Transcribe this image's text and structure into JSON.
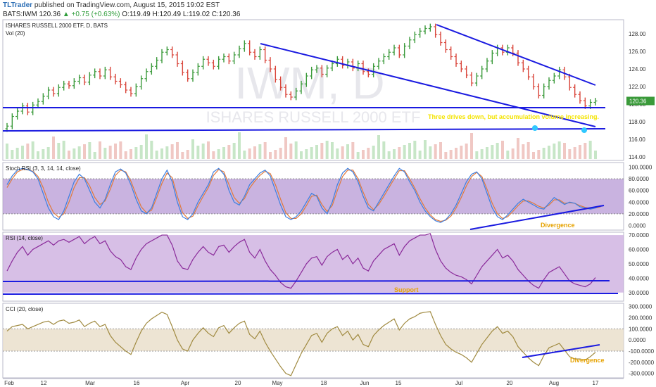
{
  "header": {
    "user": "TLTrader",
    "published": "published on TradingView.com, August 15, 2015 19:02 EST",
    "symbol": "BATS:IWM",
    "last": "120.36",
    "change": "+0.75 (+0.63%)",
    "open": "O:119.49",
    "high": "H:120.49",
    "low": "L:119.02",
    "close": "C:120.36"
  },
  "panes": {
    "price": {
      "title": "ISHARES RUSSELL 2000 ETF, D, BATS",
      "vol_label": "Vol (20)"
    },
    "stoch": {
      "title": "Stoch RSI (3, 3, 14, 14, close)"
    },
    "rsi": {
      "title": "RSI (14, close)"
    },
    "cci": {
      "title": "CCI (20, close)"
    }
  },
  "watermark": {
    "big": "IWM, D",
    "small": "ISHARES RUSSELL 2000 ETF"
  },
  "annotations": {
    "three_drives": "Three drives down, but accumulation volume increasing.",
    "stoch_div": "Divergence",
    "rsi_support": "Support",
    "cci_div": "Divergence"
  },
  "current_price_tag": "120.36",
  "colors": {
    "up": "#3b9a3b",
    "down": "#d9453a",
    "trendline": "#1a1ae0",
    "stoch_k": "#3d7fe0",
    "stoch_d": "#e07a3d",
    "rsi": "#8a2a9a",
    "cci": "#a08a40"
  },
  "chart_data": [
    {
      "type": "candlestick",
      "title": "ISHARES RUSSELL 2000 ETF, D, BATS",
      "x_ticks": [
        "Feb",
        "12",
        "Mar",
        "16",
        "Apr",
        "20",
        "May",
        "18",
        "Jun",
        "15",
        "Jul",
        "20",
        "Aug",
        "17"
      ],
      "y_ticks": [
        114.0,
        116.0,
        118.0,
        120.0,
        122.0,
        124.0,
        126.0,
        128.0
      ],
      "ylim": [
        113.6,
        129.6
      ],
      "close": [
        117.5,
        118.6,
        119.2,
        119.8,
        119.1,
        119.9,
        120.3,
        120.9,
        121.6,
        121.2,
        121.9,
        122.3,
        122.1,
        122.6,
        123.0,
        122.5,
        123.3,
        123.7,
        123.2,
        123.9,
        123.1,
        122.6,
        122.2,
        121.6,
        121.2,
        122.0,
        122.9,
        123.7,
        124.3,
        125.0,
        125.9,
        126.2,
        125.6,
        124.6,
        123.6,
        122.9,
        123.6,
        124.3,
        125.1,
        124.7,
        124.3,
        125.1,
        125.4,
        124.9,
        125.6,
        126.3,
        126.9,
        125.9,
        125.4,
        126.2,
        125.0,
        124.0,
        122.8,
        121.9,
        121.1,
        120.8,
        121.5,
        122.3,
        123.2,
        123.9,
        124.1,
        123.4,
        124.1,
        124.6,
        125.1,
        124.4,
        124.8,
        124.1,
        124.6,
        123.7,
        123.4,
        124.3,
        124.9,
        125.4,
        125.9,
        126.4,
        125.6,
        126.6,
        127.3,
        127.9,
        128.3,
        128.6,
        128.8,
        127.9,
        127.0,
        126.2,
        125.4,
        124.6,
        124.0,
        123.3,
        122.4,
        123.2,
        124.0,
        124.9,
        125.8,
        126.4,
        125.9,
        126.4,
        125.8,
        124.7,
        124.0,
        123.1,
        122.0,
        121.0,
        122.0,
        122.7,
        123.2,
        123.9,
        123.1,
        121.9,
        121.1,
        120.4,
        119.8,
        120.2,
        120.36
      ],
      "volume_desc": "volume bars at bottom of price pane"
    },
    {
      "type": "line",
      "title": "Stoch RSI (3, 3, 14, 14, close)",
      "y_ticks": [
        0.0,
        20.0,
        40.0,
        60.0,
        80.0,
        100.0
      ],
      "ylim": [
        -8,
        108
      ],
      "band": [
        20,
        80
      ],
      "series": [
        {
          "name": "%K",
          "values": [
            70,
            85,
            95,
            98,
            96,
            92,
            80,
            55,
            30,
            15,
            10,
            25,
            50,
            75,
            88,
            80,
            60,
            40,
            30,
            45,
            70,
            92,
            97,
            90,
            70,
            45,
            25,
            20,
            30,
            55,
            80,
            95,
            75,
            40,
            15,
            10,
            20,
            40,
            55,
            70,
            92,
            98,
            88,
            60,
            40,
            35,
            50,
            70,
            80,
            90,
            95,
            85,
            60,
            35,
            15,
            10,
            15,
            25,
            40,
            55,
            50,
            30,
            20,
            40,
            70,
            90,
            98,
            92,
            75,
            50,
            30,
            25,
            40,
            55,
            70,
            85,
            98,
            92,
            75,
            60,
            40,
            25,
            15,
            8,
            5,
            10,
            20,
            35,
            55,
            75,
            88,
            92,
            80,
            55,
            30,
            15,
            10,
            18,
            28,
            38,
            45,
            40,
            35,
            30,
            28,
            38,
            48,
            42,
            36,
            40,
            38,
            32,
            30,
            28,
            30,
            34
          ]
        },
        {
          "name": "%D",
          "values": [
            65,
            80,
            92,
            96,
            96,
            93,
            84,
            65,
            40,
            22,
            14,
            20,
            40,
            65,
            82,
            82,
            68,
            48,
            36,
            42,
            62,
            86,
            95,
            92,
            76,
            53,
            32,
            22,
            26,
            48,
            72,
            90,
            82,
            50,
            22,
            12,
            16,
            34,
            50,
            65,
            86,
            96,
            92,
            70,
            48,
            38,
            46,
            64,
            76,
            86,
            93,
            89,
            70,
            45,
            22,
            12,
            12,
            20,
            34,
            50,
            52,
            36,
            24,
            34,
            60,
            84,
            95,
            95,
            80,
            57,
            36,
            27,
            36,
            50,
            65,
            80,
            94,
            94,
            80,
            64,
            46,
            30,
            18,
            10,
            7,
            9,
            16,
            30,
            48,
            68,
            84,
            91,
            84,
            62,
            38,
            20,
            12,
            15,
            24,
            34,
            42,
            42,
            38,
            33,
            30,
            35,
            44,
            44,
            38,
            39,
            38,
            34,
            31,
            29,
            30,
            32
          ]
        }
      ]
    },
    {
      "type": "line",
      "title": "RSI (14, close)",
      "y_ticks": [
        30.0,
        40.0,
        50.0,
        60.0,
        70.0
      ],
      "ylim": [
        24,
        72
      ],
      "series": [
        {
          "name": "RSI",
          "values": [
            45,
            52,
            58,
            62,
            56,
            60,
            62,
            64,
            66,
            63,
            66,
            67,
            65,
            67,
            69,
            64,
            67,
            69,
            64,
            66,
            59,
            55,
            53,
            48,
            46,
            54,
            60,
            64,
            66,
            68,
            70,
            70,
            63,
            52,
            47,
            46,
            53,
            58,
            62,
            58,
            56,
            62,
            63,
            58,
            62,
            65,
            67,
            58,
            54,
            60,
            52,
            46,
            42,
            37,
            34,
            33,
            38,
            44,
            50,
            54,
            55,
            49,
            55,
            58,
            60,
            53,
            56,
            50,
            54,
            47,
            45,
            52,
            56,
            60,
            62,
            64,
            56,
            62,
            66,
            68,
            70,
            70,
            71,
            60,
            52,
            47,
            44,
            42,
            41,
            39,
            36,
            42,
            48,
            52,
            56,
            60,
            54,
            56,
            52,
            46,
            42,
            38,
            35,
            33,
            39,
            44,
            46,
            48,
            43,
            38,
            36,
            35,
            34,
            36,
            40.4
          ]
        }
      ]
    },
    {
      "type": "line",
      "title": "CCI (20, close)",
      "y_ticks": [
        -300.0,
        -200.0,
        -100.0,
        0.0,
        100.0,
        200.0,
        300.0
      ],
      "ylim": [
        -340,
        330
      ],
      "band": [
        -100,
        100
      ],
      "series": [
        {
          "name": "CCI",
          "values": [
            80,
            120,
            130,
            140,
            100,
            120,
            140,
            160,
            170,
            140,
            170,
            180,
            150,
            160,
            180,
            120,
            150,
            170,
            120,
            140,
            40,
            -20,
            -60,
            -100,
            -130,
            -20,
            80,
            150,
            190,
            220,
            250,
            230,
            120,
            0,
            -80,
            -100,
            0,
            60,
            110,
            60,
            30,
            110,
            130,
            60,
            110,
            150,
            170,
            50,
            10,
            80,
            -20,
            -100,
            -170,
            -240,
            -300,
            -320,
            -220,
            -120,
            -40,
            40,
            60,
            -20,
            60,
            100,
            120,
            40,
            80,
            0,
            50,
            -40,
            -60,
            40,
            90,
            130,
            160,
            190,
            90,
            150,
            190,
            210,
            240,
            250,
            255,
            140,
            40,
            -40,
            -80,
            -110,
            -130,
            -160,
            -200,
            -120,
            -40,
            20,
            80,
            120,
            60,
            80,
            30,
            -60,
            -110,
            -160,
            -200,
            -230,
            -140,
            -70,
            -50,
            -30,
            -90,
            -150,
            -170,
            -170,
            -180,
            -150,
            -110
          ]
        }
      ]
    }
  ]
}
